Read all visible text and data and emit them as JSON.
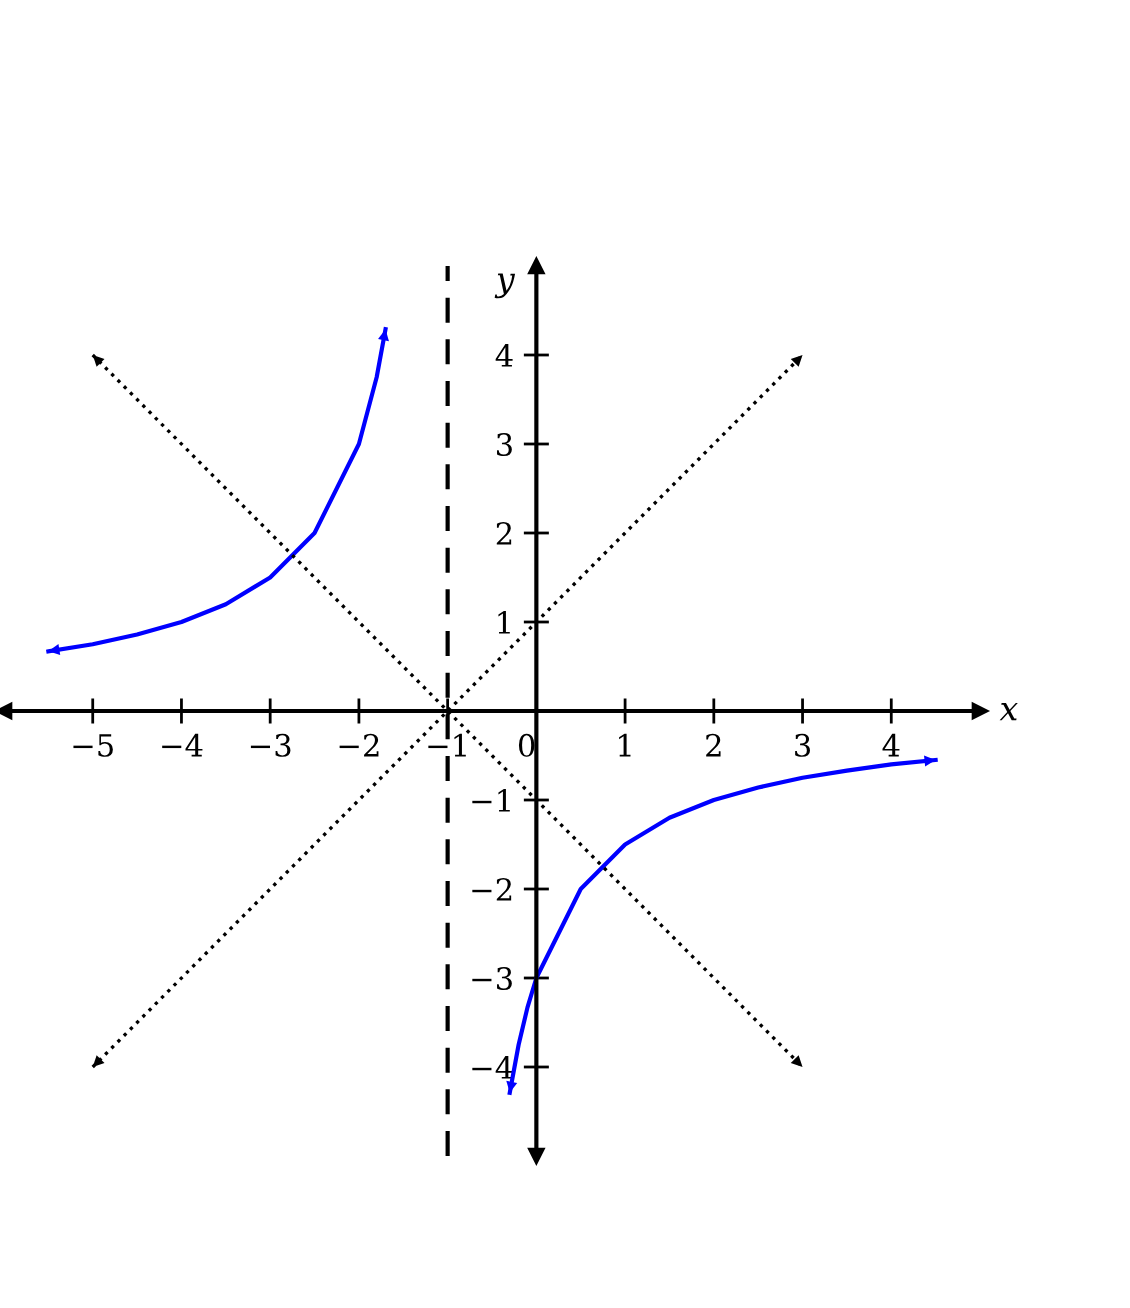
{
  "chart_data": {
    "type": "line",
    "xlabel": "x",
    "ylabel": "y",
    "xlim": [
      -6,
      5
    ],
    "ylim": [
      -5,
      5
    ],
    "xticks": [
      {
        "value": -5,
        "label": "−5"
      },
      {
        "value": -4,
        "label": "−4"
      },
      {
        "value": -3,
        "label": "−3"
      },
      {
        "value": -2,
        "label": "−2"
      },
      {
        "value": -1,
        "label": "−1"
      },
      {
        "value": 0,
        "label": "0"
      },
      1,
      2,
      3,
      4
    ],
    "yticks": [
      {
        "value": -4,
        "label": "−4"
      },
      {
        "value": -3,
        "label": "−3"
      },
      {
        "value": -2,
        "label": "−2"
      },
      {
        "value": -1,
        "label": "−1"
      },
      1,
      2,
      3,
      4
    ],
    "grid": false,
    "legend": false,
    "series": [
      {
        "color": "#0000ff",
        "line_style": "solid",
        "x": [
          -5.5,
          -5,
          -4.5,
          -4,
          -3.5,
          -3,
          -2.5,
          -2,
          -1.8,
          -1.7
        ],
        "values": [
          0.67,
          0.75,
          0.86,
          1.0,
          1.2,
          1.5,
          2.0,
          3.0,
          3.75,
          4.29
        ]
      },
      {
        "color": "#0000ff",
        "line_style": "solid",
        "x": [
          -0.3,
          -0.2,
          -0.1,
          0,
          0.5,
          1,
          1.5,
          2,
          2.5,
          3,
          3.5,
          4,
          4.5
        ],
        "values": [
          -4.29,
          -3.75,
          -3.33,
          -3,
          -2,
          -1.5,
          -1.2,
          -1,
          -0.86,
          -0.75,
          -0.67,
          -0.6,
          -0.55
        ]
      },
      {
        "color": "#000000",
        "line_style": "dotted",
        "x": [
          -5,
          3
        ],
        "values": [
          -4,
          4
        ]
      },
      {
        "color": "#000000",
        "line_style": "dotted",
        "x": [
          -5,
          3
        ],
        "values": [
          4,
          -4
        ]
      }
    ],
    "ref_lines": [
      {
        "axis": "x",
        "value": -1,
        "color": "#000000",
        "line_style": "dashed"
      }
    ]
  }
}
